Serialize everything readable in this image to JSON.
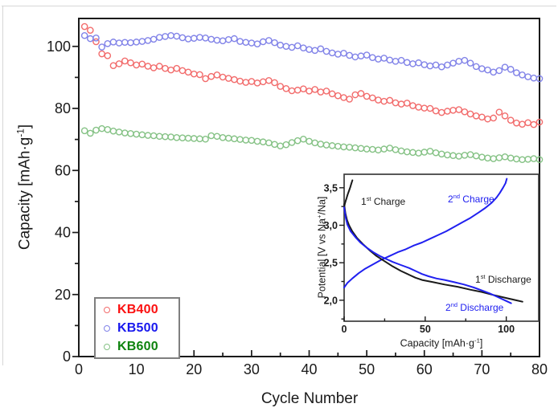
{
  "figure": {
    "background": "#ffffff",
    "border_color": "#d6d6d6"
  },
  "chart_data": [
    {
      "id": "main",
      "type": "scatter",
      "title": "",
      "xlabel": "Cycle Number",
      "ylabel": "Capacity [mAh·g⁻¹]",
      "xlim": [
        0,
        80
      ],
      "ylim": [
        0,
        109
      ],
      "grid": false,
      "legend_position": "lower-left",
      "x_major_ticks": [
        0,
        10,
        20,
        30,
        40,
        50,
        60,
        70,
        80
      ],
      "x_minor_ticks": [
        5,
        15,
        25,
        35,
        45,
        55,
        65,
        75
      ],
      "y_major_ticks": [
        0,
        20,
        40,
        60,
        80,
        100
      ],
      "y_minor_ticks": [
        10,
        30,
        50,
        70,
        90
      ],
      "x_start_cycle": 1,
      "series": [
        {
          "name": "KB400",
          "color": "#f26c6c",
          "values": [
            106.4,
            105.2,
            101.5,
            97.6,
            97.0,
            93.8,
            94.4,
            95.3,
            94.7,
            94.0,
            94.3,
            93.6,
            93.1,
            93.6,
            92.9,
            92.4,
            92.9,
            92.2,
            91.7,
            91.1,
            90.9,
            89.6,
            90.3,
            90.8,
            90.1,
            89.7,
            89.3,
            88.8,
            88.4,
            88.7,
            88.2,
            88.6,
            89.0,
            88.3,
            87.1,
            86.4,
            85.7,
            85.9,
            86.3,
            85.6,
            86.1,
            85.3,
            85.6,
            84.7,
            84.1,
            83.5,
            83.0,
            84.4,
            84.8,
            83.9,
            83.4,
            82.7,
            82.3,
            82.6,
            81.8,
            81.4,
            81.7,
            80.9,
            80.4,
            80.1,
            80.0,
            79.2,
            78.7,
            79.1,
            79.4,
            79.6,
            78.9,
            78.2,
            77.6,
            77.2,
            76.6,
            76.9,
            78.8,
            77.6,
            76.2,
            75.3,
            74.9,
            75.4,
            74.8,
            75.6
          ]
        },
        {
          "name": "KB500",
          "color": "#8183e8",
          "values": [
            103.5,
            102.5,
            102.7,
            99.8,
            100.9,
            101.4,
            101.1,
            101.3,
            101.2,
            101.4,
            101.6,
            101.9,
            102.3,
            102.9,
            103.2,
            103.5,
            103.3,
            102.8,
            102.4,
            102.6,
            102.9,
            102.7,
            102.3,
            102.0,
            101.8,
            102.2,
            102.5,
            101.6,
            101.3,
            101.1,
            100.8,
            101.5,
            101.9,
            101.2,
            100.4,
            100.0,
            99.7,
            100.2,
            99.5,
            99.0,
            98.7,
            99.2,
            98.4,
            97.9,
            97.5,
            97.8,
            97.1,
            96.6,
            96.9,
            97.2,
            96.4,
            95.9,
            96.2,
            95.6,
            95.2,
            95.5,
            94.8,
            94.4,
            94.7,
            94.1,
            93.7,
            94.0,
            93.4,
            94.0,
            94.6,
            95.2,
            95.5,
            94.6,
            93.5,
            92.8,
            92.4,
            91.7,
            92.2,
            93.3,
            92.6,
            91.5,
            90.8,
            90.2,
            89.8,
            89.6
          ]
        },
        {
          "name": "KB600",
          "color": "#85c285",
          "values": [
            72.8,
            72.0,
            73.0,
            73.5,
            73.2,
            72.7,
            72.4,
            72.1,
            71.9,
            71.7,
            71.5,
            71.3,
            71.2,
            71.0,
            70.9,
            70.8,
            70.6,
            70.5,
            70.4,
            70.3,
            70.2,
            70.1,
            71.2,
            71.0,
            70.6,
            70.4,
            70.2,
            70.0,
            69.8,
            69.7,
            69.4,
            69.2,
            68.9,
            68.4,
            67.9,
            68.3,
            69.0,
            69.6,
            70.1,
            69.4,
            68.9,
            68.5,
            68.2,
            68.0,
            67.8,
            67.6,
            67.5,
            67.3,
            67.1,
            66.9,
            66.8,
            66.6,
            66.9,
            67.2,
            66.7,
            66.3,
            66.0,
            65.8,
            65.6,
            65.9,
            66.2,
            65.7,
            65.3,
            65.0,
            64.8,
            64.6,
            64.9,
            65.1,
            64.7,
            64.3,
            64.0,
            63.8,
            64.1,
            64.4,
            64.0,
            63.7,
            63.5,
            63.6,
            63.8,
            63.5
          ]
        }
      ]
    },
    {
      "id": "inset",
      "type": "line",
      "title": "",
      "xlabel": "Capacity [mAh·g⁻¹]",
      "ylabel": "Potential [V vs Na⁺/Na]",
      "xlim": [
        0,
        120
      ],
      "ylim": [
        1.72,
        3.68
      ],
      "grid": false,
      "x_major_ticks": [
        0,
        50,
        100
      ],
      "x_minor_ticks": [
        25,
        75
      ],
      "y_major_ticks": [
        {
          "v": 2.0,
          "label": "2,0"
        },
        {
          "v": 2.5,
          "label": "2,5"
        },
        {
          "v": 3.0,
          "label": "3,0"
        },
        {
          "v": 3.5,
          "label": "3,5"
        }
      ],
      "y_minor_ticks": [
        1.75,
        2.25,
        2.75,
        3.25
      ],
      "series": [
        {
          "name": "1st Charge",
          "color": "#1a1a1a",
          "points": [
            [
              0,
              3.24
            ],
            [
              0.4,
              3.28
            ],
            [
              0.9,
              3.32
            ],
            [
              1.5,
              3.36
            ],
            [
              2.2,
              3.41
            ],
            [
              3.0,
              3.46
            ],
            [
              3.8,
              3.51
            ],
            [
              4.5,
              3.56
            ],
            [
              5.1,
              3.6
            ]
          ]
        },
        {
          "name": "2nd Charge",
          "color": "#2020f0",
          "points": [
            [
              0,
              2.17
            ],
            [
              2,
              2.23
            ],
            [
              5,
              2.29
            ],
            [
              9,
              2.36
            ],
            [
              13,
              2.42
            ],
            [
              18,
              2.48
            ],
            [
              23,
              2.54
            ],
            [
              28,
              2.59
            ],
            [
              33,
              2.64
            ],
            [
              38,
              2.68
            ],
            [
              43,
              2.73
            ],
            [
              48,
              2.77
            ],
            [
              53,
              2.82
            ],
            [
              58,
              2.87
            ],
            [
              63,
              2.92
            ],
            [
              68,
              2.98
            ],
            [
              73,
              3.04
            ],
            [
              78,
              3.1
            ],
            [
              83,
              3.17
            ],
            [
              87,
              3.23
            ],
            [
              91,
              3.3
            ],
            [
              94,
              3.37
            ],
            [
              96,
              3.43
            ],
            [
              98,
              3.5
            ],
            [
              99.5,
              3.56
            ],
            [
              100.3,
              3.62
            ]
          ]
        },
        {
          "name": "1st Discharge",
          "color": "#1a1a1a",
          "points": [
            [
              0,
              3.28
            ],
            [
              0.8,
              3.16
            ],
            [
              1.8,
              3.07
            ],
            [
              3,
              3.0
            ],
            [
              5,
              2.92
            ],
            [
              8,
              2.83
            ],
            [
              12,
              2.74
            ],
            [
              16,
              2.66
            ],
            [
              20,
              2.59
            ],
            [
              25,
              2.52
            ],
            [
              30,
              2.45
            ],
            [
              35,
              2.39
            ],
            [
              40,
              2.34
            ],
            [
              44,
              2.3
            ],
            [
              48,
              2.27
            ],
            [
              55,
              2.24
            ],
            [
              62,
              2.21
            ],
            [
              70,
              2.18
            ],
            [
              78,
              2.14
            ],
            [
              85,
              2.11
            ],
            [
              92,
              2.07
            ],
            [
              100,
              2.03
            ],
            [
              106,
              2.0
            ],
            [
              110,
              1.98
            ]
          ]
        },
        {
          "name": "2nd Discharge",
          "color": "#2020f0",
          "points": [
            [
              0,
              3.24
            ],
            [
              1,
              3.1
            ],
            [
              2,
              3.01
            ],
            [
              4,
              2.92
            ],
            [
              7,
              2.84
            ],
            [
              10,
              2.77
            ],
            [
              14,
              2.7
            ],
            [
              18,
              2.64
            ],
            [
              22,
              2.59
            ],
            [
              26,
              2.55
            ],
            [
              30,
              2.51
            ],
            [
              35,
              2.47
            ],
            [
              40,
              2.43
            ],
            [
              45,
              2.38
            ],
            [
              48,
              2.35
            ],
            [
              52,
              2.32
            ],
            [
              57,
              2.29
            ],
            [
              62,
              2.27
            ],
            [
              68,
              2.24
            ],
            [
              74,
              2.21
            ],
            [
              80,
              2.17
            ],
            [
              85,
              2.13
            ],
            [
              90,
              2.09
            ],
            [
              95,
              2.04
            ],
            [
              100,
              1.99
            ],
            [
              103,
              1.96
            ]
          ]
        }
      ]
    }
  ],
  "labels": {
    "main_xlabel": "Cycle Number",
    "main_ylabel": {
      "pre": "Capacity [mAh·g",
      "sup": "-1",
      "post": "]"
    },
    "inset_xlabel": {
      "pre": "Capacity [mAh·g",
      "sup": "-1",
      "post": "]"
    },
    "inset_ylabel": {
      "pre": "Potential [V vs Na",
      "sup": "+",
      "post": "/Na]"
    },
    "curve_labels": {
      "first_charge": {
        "num": "1",
        "sup": "st",
        "rest": " Charge",
        "color": "#1a1a1a"
      },
      "second_charge": {
        "num": "2",
        "sup": "nd",
        "rest": " Charge",
        "color": "#2020f0"
      },
      "first_discharge": {
        "num": "1",
        "sup": "st",
        "rest": " Discharge",
        "color": "#1a1a1a"
      },
      "second_discharge": {
        "num": "2",
        "sup": "nd",
        "rest": " Discharge",
        "color": "#2020f0"
      }
    }
  },
  "legend": {
    "items": [
      {
        "label": "KB400",
        "text_color": "#fb1010",
        "marker_color": "#f26c6c"
      },
      {
        "label": "KB500",
        "text_color": "#1818ee",
        "marker_color": "#8183e8"
      },
      {
        "label": "KB600",
        "text_color": "#0e830e",
        "marker_color": "#85c285"
      }
    ]
  }
}
